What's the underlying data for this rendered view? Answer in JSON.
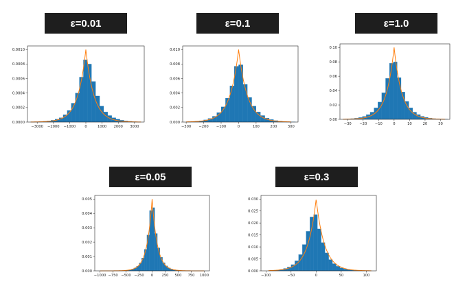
{
  "colors": {
    "bar": "#1f77b4",
    "curve": "#ff7f0e",
    "banner_bg": "#1e1e1e",
    "banner_text": "#ffffff"
  },
  "chart_data": [
    {
      "type": "bar",
      "title": "ε=0.01",
      "xlim": [
        -3600,
        3600
      ],
      "ylim": [
        0,
        0.00105
      ],
      "xticks": [
        -3000,
        -2000,
        -1000,
        0,
        1000,
        2000,
        3000
      ],
      "xtick_labels": [
        "−3000",
        "−2000",
        "−1000",
        "0",
        "1000",
        "2000",
        "3000"
      ],
      "yticks": [
        0,
        0.0002,
        0.0004,
        0.0006,
        0.0008,
        0.001
      ],
      "ytick_labels": [
        "0.0000",
        "0.0002",
        "0.0004",
        "0.0006",
        "0.0008",
        "0.0010"
      ],
      "bin_edges": [
        -3400,
        -3150,
        -2900,
        -2650,
        -2400,
        -2150,
        -1900,
        -1650,
        -1400,
        -1150,
        -900,
        -650,
        -400,
        -150,
        100,
        350,
        600,
        850,
        1100,
        1350,
        1600,
        1850,
        2100,
        2350,
        2600,
        2850,
        3100,
        3350
      ],
      "bin_values": [
        2e-06,
        4e-06,
        6e-06,
        1e-05,
        1.5e-05,
        2.5e-05,
        4e-05,
        6e-05,
        0.0001,
        0.00016,
        0.00026,
        0.0004,
        0.00062,
        0.00086,
        0.0008,
        0.00056,
        0.00036,
        0.00022,
        0.00014,
        9e-05,
        6e-05,
        4e-05,
        2.5e-05,
        1.5e-05,
        1e-05,
        5e-06,
        2e-06
      ],
      "laplace": {
        "peak": 0.001,
        "scale": 500
      },
      "curve_range": [
        -3400,
        3400
      ]
    },
    {
      "type": "bar",
      "title": "ε=0.1",
      "xlim": [
        -320,
        340
      ],
      "ylim": [
        0,
        0.0105
      ],
      "xticks": [
        -300,
        -200,
        -100,
        0,
        100,
        200,
        300
      ],
      "xtick_labels": [
        "−300",
        "−200",
        "−100",
        "0",
        "100",
        "200",
        "300"
      ],
      "yticks": [
        0,
        0.002,
        0.004,
        0.006,
        0.008,
        0.01
      ],
      "ytick_labels": [
        "0.000",
        "0.002",
        "0.004",
        "0.006",
        "0.008",
        "0.010"
      ],
      "bin_edges": [
        -300,
        -275,
        -250,
        -225,
        -200,
        -175,
        -150,
        -125,
        -100,
        -75,
        -50,
        -25,
        0,
        25,
        50,
        75,
        100,
        125,
        150,
        175,
        200,
        225,
        250,
        275,
        300,
        325
      ],
      "bin_values": [
        2e-05,
        5e-05,
        0.0001,
        0.00017,
        0.0003,
        0.0005,
        0.0008,
        0.0013,
        0.0021,
        0.0033,
        0.005,
        0.0077,
        0.0079,
        0.0052,
        0.0034,
        0.0022,
        0.0014,
        0.0009,
        0.00055,
        0.00035,
        0.0002,
        0.00012,
        7e-05,
        4e-05,
        2e-05
      ],
      "laplace": {
        "peak": 0.01,
        "scale": 50
      },
      "curve_range": [
        -300,
        300
      ]
    },
    {
      "type": "bar",
      "title": "ε=1.0",
      "xlim": [
        -35,
        36
      ],
      "ylim": [
        0,
        0.105
      ],
      "xticks": [
        -30,
        -20,
        -10,
        0,
        10,
        20,
        30
      ],
      "xtick_labels": [
        "−30",
        "−20",
        "−10",
        "0",
        "10",
        "20",
        "30"
      ],
      "yticks": [
        0,
        0.02,
        0.04,
        0.06,
        0.08,
        0.1
      ],
      "ytick_labels": [
        "0.00",
        "0.02",
        "0.04",
        "0.06",
        "0.08",
        "0.10"
      ],
      "bin_edges": [
        -33,
        -30.5,
        -28,
        -25.5,
        -23,
        -20.5,
        -18,
        -15.5,
        -13,
        -10.5,
        -8,
        -5.5,
        -3,
        -0.5,
        2,
        4.5,
        7,
        9.5,
        12,
        14.5,
        17,
        19.5,
        22,
        24.5,
        27,
        29.5,
        32,
        34.5
      ],
      "bin_values": [
        0.0003,
        0.0005,
        0.001,
        0.0016,
        0.0025,
        0.004,
        0.0065,
        0.01,
        0.016,
        0.024,
        0.037,
        0.057,
        0.078,
        0.08,
        0.058,
        0.038,
        0.025,
        0.016,
        0.01,
        0.0066,
        0.0042,
        0.0027,
        0.0017,
        0.001,
        0.0006,
        0.0003,
        0.0002
      ],
      "laplace": {
        "peak": 0.1,
        "scale": 5
      },
      "curve_range": [
        -33,
        33
      ]
    },
    {
      "type": "bar",
      "title": "ε=0.05",
      "xlim": [
        -1100,
        1100
      ],
      "ylim": [
        0,
        0.00525
      ],
      "xticks": [
        -1000,
        -750,
        -500,
        -250,
        0,
        250,
        500,
        750,
        1000
      ],
      "xtick_labels": [
        "−1000",
        "−750",
        "−500",
        "−250",
        "0",
        "250",
        "500",
        "750",
        "1000"
      ],
      "yticks": [
        0,
        0.001,
        0.002,
        0.003,
        0.004,
        0.005
      ],
      "ytick_labels": [
        "0.000",
        "0.001",
        "0.002",
        "0.003",
        "0.004",
        "0.005"
      ],
      "bin_edges": [
        -600,
        -550,
        -500,
        -450,
        -400,
        -350,
        -300,
        -250,
        -200,
        -150,
        -100,
        -50,
        0,
        50,
        100,
        150,
        200,
        250,
        300,
        350,
        400,
        450,
        500,
        550,
        600
      ],
      "bin_values": [
        1e-05,
        2e-05,
        4e-05,
        7e-05,
        0.00012,
        0.0002,
        0.00033,
        0.00055,
        0.0009,
        0.0015,
        0.0025,
        0.0042,
        0.0044,
        0.0026,
        0.0016,
        0.00095,
        0.00057,
        0.00035,
        0.00021,
        0.00013,
        8e-05,
        5e-05,
        3e-05,
        1e-05
      ],
      "laplace": {
        "peak": 0.005,
        "scale": 100
      },
      "curve_range": [
        -1000,
        1000
      ]
    },
    {
      "type": "bar",
      "title": "ε=0.3",
      "xlim": [
        -110,
        120
      ],
      "ylim": [
        0,
        0.0315
      ],
      "xticks": [
        -100,
        -50,
        0,
        50,
        100
      ],
      "xtick_labels": [
        "−100",
        "−50",
        "0",
        "50",
        "100"
      ],
      "yticks": [
        0,
        0.005,
        0.01,
        0.015,
        0.02,
        0.025,
        0.03
      ],
      "ytick_labels": [
        "0.000",
        "0.005",
        "0.010",
        "0.015",
        "0.020",
        "0.025",
        "0.030"
      ],
      "bin_edges": [
        -95,
        -87.5,
        -80,
        -72.5,
        -65,
        -57.5,
        -50,
        -42.5,
        -35,
        -27.5,
        -20,
        -12.5,
        -5,
        2.5,
        10,
        17.5,
        25,
        32.5,
        40,
        47.5,
        55,
        62.5,
        70,
        77.5,
        85,
        92.5,
        100,
        107.5
      ],
      "bin_values": [
        0.0001,
        0.0002,
        0.00035,
        0.0006,
        0.001,
        0.0016,
        0.0026,
        0.0042,
        0.0068,
        0.011,
        0.0165,
        0.0225,
        0.0235,
        0.0175,
        0.0118,
        0.0075,
        0.0047,
        0.003,
        0.0019,
        0.0012,
        0.00075,
        0.00045,
        0.00028,
        0.00017,
        0.0001,
        6e-05,
        3e-05
      ],
      "laplace": {
        "peak": 0.03,
        "scale": 16.7
      },
      "curve_range": [
        -95,
        110
      ]
    }
  ]
}
